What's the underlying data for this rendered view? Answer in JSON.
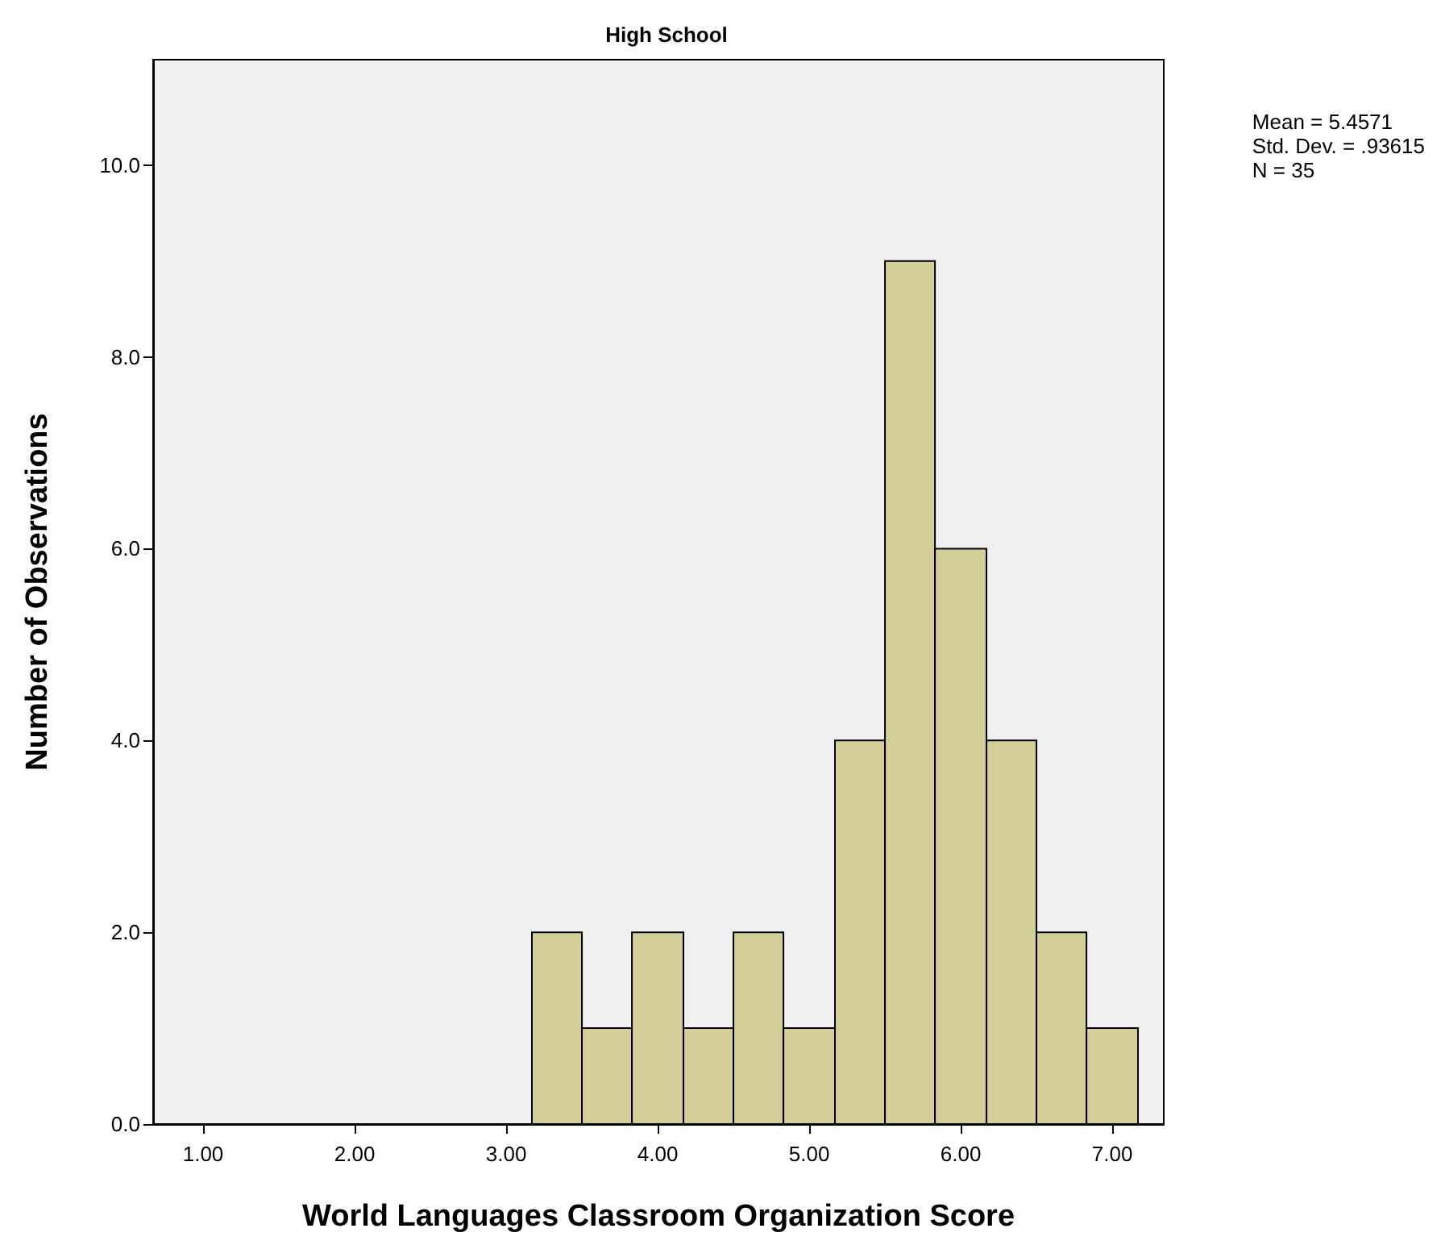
{
  "chart_data": {
    "type": "histogram",
    "title": "High School",
    "xlabel": "World Languages Classroom Organization Score",
    "ylabel": "Number of Observations",
    "bins": [
      3.17,
      3.5,
      3.83,
      4.17,
      4.5,
      4.83,
      5.17,
      5.5,
      5.83,
      6.17,
      6.5,
      6.83,
      7.17
    ],
    "values": [
      2,
      1,
      2,
      1,
      2,
      1,
      4,
      9,
      6,
      4,
      2,
      1
    ],
    "color": "#d4cf99",
    "xlim": [
      0.67,
      7.34
    ],
    "ylim": [
      0,
      11.1
    ],
    "xticks": [
      {
        "value": 1,
        "label": "1.00"
      },
      {
        "value": 2,
        "label": "2.00"
      },
      {
        "value": 3,
        "label": "3.00"
      },
      {
        "value": 4,
        "label": "4.00"
      },
      {
        "value": 5,
        "label": "5.00"
      },
      {
        "value": 6,
        "label": "6.00"
      },
      {
        "value": 7,
        "label": "7.00"
      }
    ],
    "yticks": [
      {
        "value": 0,
        "label": "0.0"
      },
      {
        "value": 2,
        "label": "2.0"
      },
      {
        "value": 4,
        "label": "4.0"
      },
      {
        "value": 6,
        "label": "6.0"
      },
      {
        "value": 8,
        "label": "8.0"
      },
      {
        "value": 10,
        "label": "10.0"
      }
    ],
    "annotations": [
      "Mean = 5.4571\nStd. Dev. = .93615\nN = 35"
    ],
    "grid": false
  }
}
